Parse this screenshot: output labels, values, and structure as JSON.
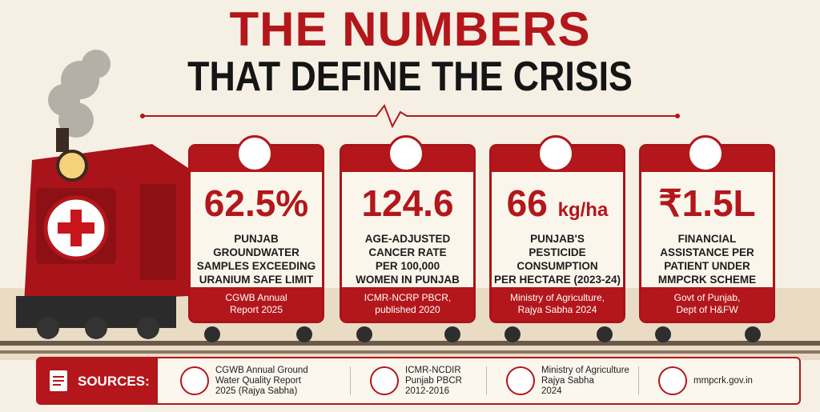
{
  "header": {
    "title_line1": "THE NUMBERS",
    "title_line2": "THAT DEFINE THE CRISIS"
  },
  "cards": [
    {
      "value": "62.5%",
      "description": [
        "PUNJAB",
        "GROUNDWATER",
        "SAMPLES EXCEEDING",
        "URANIUM SAFE LIMIT"
      ],
      "source": [
        "CGWB Annual",
        "Report 2025"
      ]
    },
    {
      "value": "124.6",
      "description": [
        "AGE-ADJUSTED",
        "CANCER RATE",
        "PER 100,000",
        "WOMEN IN PUNJAB"
      ],
      "source": [
        "ICMR-NCRP PBCR,",
        "published 2020"
      ]
    },
    {
      "value": "66",
      "unit": "kg/ha",
      "description": [
        "PUNJAB'S",
        "PESTICIDE",
        "CONSUMPTION",
        "PER HECTARE (2023-24)"
      ],
      "source": [
        "Ministry of Agriculture,",
        "Rajya Sabha 2024"
      ]
    },
    {
      "value": "₹1.5L",
      "description": [
        "FINANCIAL",
        "ASSISTANCE PER",
        "PATIENT UNDER",
        "MMPCRK SCHEME"
      ],
      "source": [
        "Govt of Punjab,",
        "Dept of H&FW"
      ]
    }
  ],
  "footer": {
    "label": "SOURCES:",
    "items": [
      [
        "CGWB Annual Ground",
        "Water Quality Report",
        "2025 (Rajya Sabha)"
      ],
      [
        "ICMR-NCDIR",
        "Punjab PBCR",
        "2012-2016"
      ],
      [
        "Ministry of Agriculture",
        "Rajya Sabha",
        "2024"
      ],
      [
        "mmpcrk.gov.in"
      ]
    ]
  }
}
